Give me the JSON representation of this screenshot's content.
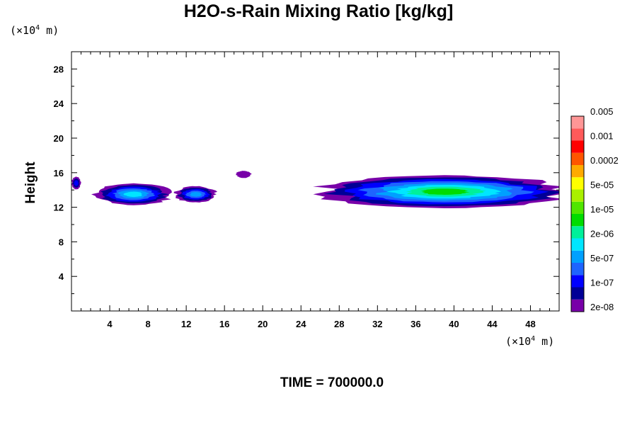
{
  "chart_data": {
    "type": "contour",
    "title": "H2O-s-Rain Mixing Ratio [kg/kg]",
    "ylabel": "Height",
    "x_unit": {
      "prefix": "(×10",
      "exponent": "4",
      "suffix": " m)"
    },
    "y_unit": {
      "prefix": "(×10",
      "exponent": "4",
      "suffix": " m)"
    },
    "x_ticks": [
      4,
      8,
      12,
      16,
      20,
      24,
      28,
      32,
      36,
      40,
      44,
      48
    ],
    "y_ticks": [
      4,
      8,
      12,
      16,
      20,
      24,
      28
    ],
    "xlim": [
      0,
      51
    ],
    "ylim": [
      0,
      30
    ],
    "footer": "TIME = 700000.0",
    "colorbar": {
      "colors": [
        "#7800a8",
        "#000096",
        "#0000ff",
        "#1e64ff",
        "#00a0ff",
        "#00e6ff",
        "#00f09a",
        "#00dc00",
        "#50e600",
        "#aaf000",
        "#ffff00",
        "#ffaa00",
        "#ff5500",
        "#ff0000",
        "#ff5a5a",
        "#ff9696"
      ],
      "labels": [
        "2e-08",
        "1e-07",
        "5e-07",
        "2e-06",
        "1e-05",
        "5e-05",
        "0.0002",
        "0.001",
        "0.005"
      ]
    },
    "regions": [
      {
        "name": "cloud-left-edge",
        "level": 2,
        "x": 0.5,
        "y": 14.8,
        "rx": 0.5,
        "ry": 0.7
      },
      {
        "name": "cloud-left",
        "level": 5,
        "x": 6.5,
        "y": 13.5,
        "rx": 4.0,
        "ry": 1.2
      },
      {
        "name": "cloud-mid-left",
        "level": 4,
        "x": 13.0,
        "y": 13.5,
        "rx": 2.2,
        "ry": 0.9
      },
      {
        "name": "cloud-fragment",
        "level": 0,
        "x": 18.0,
        "y": 15.8,
        "rx": 0.8,
        "ry": 0.4
      },
      {
        "name": "cloud-right",
        "level": 7,
        "x": 39.0,
        "y": 13.8,
        "rx": 13.0,
        "ry": 1.8
      }
    ]
  }
}
